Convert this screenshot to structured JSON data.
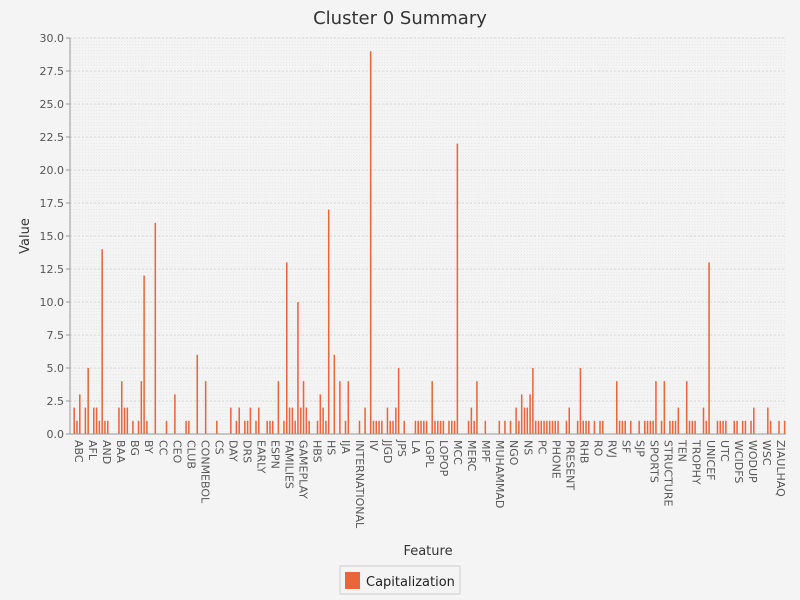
{
  "chart_data": {
    "type": "bar",
    "title": "Cluster 0 Summary",
    "xlabel": "Feature",
    "ylabel": "Value",
    "ylim": [
      0,
      30
    ],
    "yticks": [
      "0.0",
      "2.5",
      "5.0",
      "7.5",
      "10.0",
      "12.5",
      "15.0",
      "17.5",
      "20.0",
      "22.5",
      "25.0",
      "27.5",
      "30.0"
    ],
    "xticks": [
      "ABC",
      "AFL",
      "AND",
      "BAA",
      "BG",
      "BY",
      "CC",
      "CEO",
      "CLUB",
      "CONMEBOL",
      "CS",
      "DAY",
      "DRS",
      "EARLY",
      "ESPN",
      "FAMILIES",
      "GAMEPLAY",
      "HBS",
      "HS",
      "IJA",
      "INTERNATIONAL",
      "IV",
      "JJGD",
      "JPS",
      "LA",
      "LGPL",
      "LOPOP",
      "MCC",
      "MERC",
      "MPF",
      "MUHAMMAD",
      "NGO",
      "NS",
      "PC",
      "PHONE",
      "PRESENT",
      "RHB",
      "RO",
      "RVJ",
      "SF",
      "SJP",
      "SPORTS",
      "STRUCTURE",
      "TEN",
      "TROPHY",
      "UNICEF",
      "UTC",
      "WCIDFS",
      "WODUP",
      "WSC",
      "ZIAULHAQ"
    ],
    "legend_position": "bottom",
    "grid": true,
    "bar_color": "#e8663a",
    "series": [
      {
        "name": "Capitalization",
        "values": [
          0,
          2,
          1,
          3,
          0,
          2,
          5,
          0,
          2,
          2,
          1,
          14,
          1,
          1,
          0,
          0,
          0,
          2,
          4,
          2,
          2,
          0,
          1,
          0,
          1,
          4,
          12,
          1,
          0,
          0,
          16,
          0,
          0,
          0,
          1,
          0,
          0,
          3,
          0,
          0,
          0,
          1,
          1,
          0,
          0,
          6,
          0,
          0,
          4,
          0,
          0,
          0,
          1,
          0,
          0,
          0,
          0,
          2,
          0,
          1,
          2,
          0,
          1,
          1,
          2,
          0,
          1,
          2,
          0,
          0,
          1,
          1,
          1,
          0,
          4,
          0,
          1,
          13,
          2,
          2,
          1,
          10,
          2,
          4,
          2,
          1,
          0,
          0,
          1,
          3,
          2,
          1,
          17,
          0,
          6,
          0,
          4,
          0,
          1,
          4,
          0,
          0,
          0,
          1,
          0,
          2,
          0,
          29,
          1,
          1,
          1,
          1,
          0,
          2,
          1,
          1,
          2,
          5,
          0,
          1,
          0,
          0,
          0,
          1,
          1,
          1,
          1,
          1,
          0,
          4,
          1,
          1,
          1,
          1,
          0,
          1,
          1,
          1,
          22,
          0,
          0,
          0,
          1,
          2,
          1,
          4,
          0,
          0,
          1,
          0,
          0,
          0,
          0,
          1,
          0,
          1,
          0,
          1,
          0,
          2,
          1,
          3,
          2,
          2,
          3,
          5,
          1,
          1,
          1,
          1,
          1,
          1,
          1,
          1,
          1,
          0,
          0,
          1,
          2,
          0,
          0,
          1,
          5,
          1,
          1,
          1,
          0,
          1,
          0,
          1,
          1,
          0,
          0,
          0,
          0,
          4,
          1,
          1,
          1,
          0,
          1,
          0,
          0,
          1,
          0,
          1,
          1,
          1,
          1,
          4,
          0,
          1,
          4,
          0,
          1,
          1,
          1,
          2,
          0,
          0,
          4,
          1,
          1,
          1,
          0,
          0,
          2,
          1,
          13,
          0,
          0,
          1,
          1,
          1,
          1,
          0,
          0,
          1,
          1,
          0,
          1,
          1,
          0,
          1,
          2,
          0,
          0,
          0,
          0,
          2,
          1,
          0,
          0,
          1,
          0,
          1
        ]
      }
    ]
  }
}
